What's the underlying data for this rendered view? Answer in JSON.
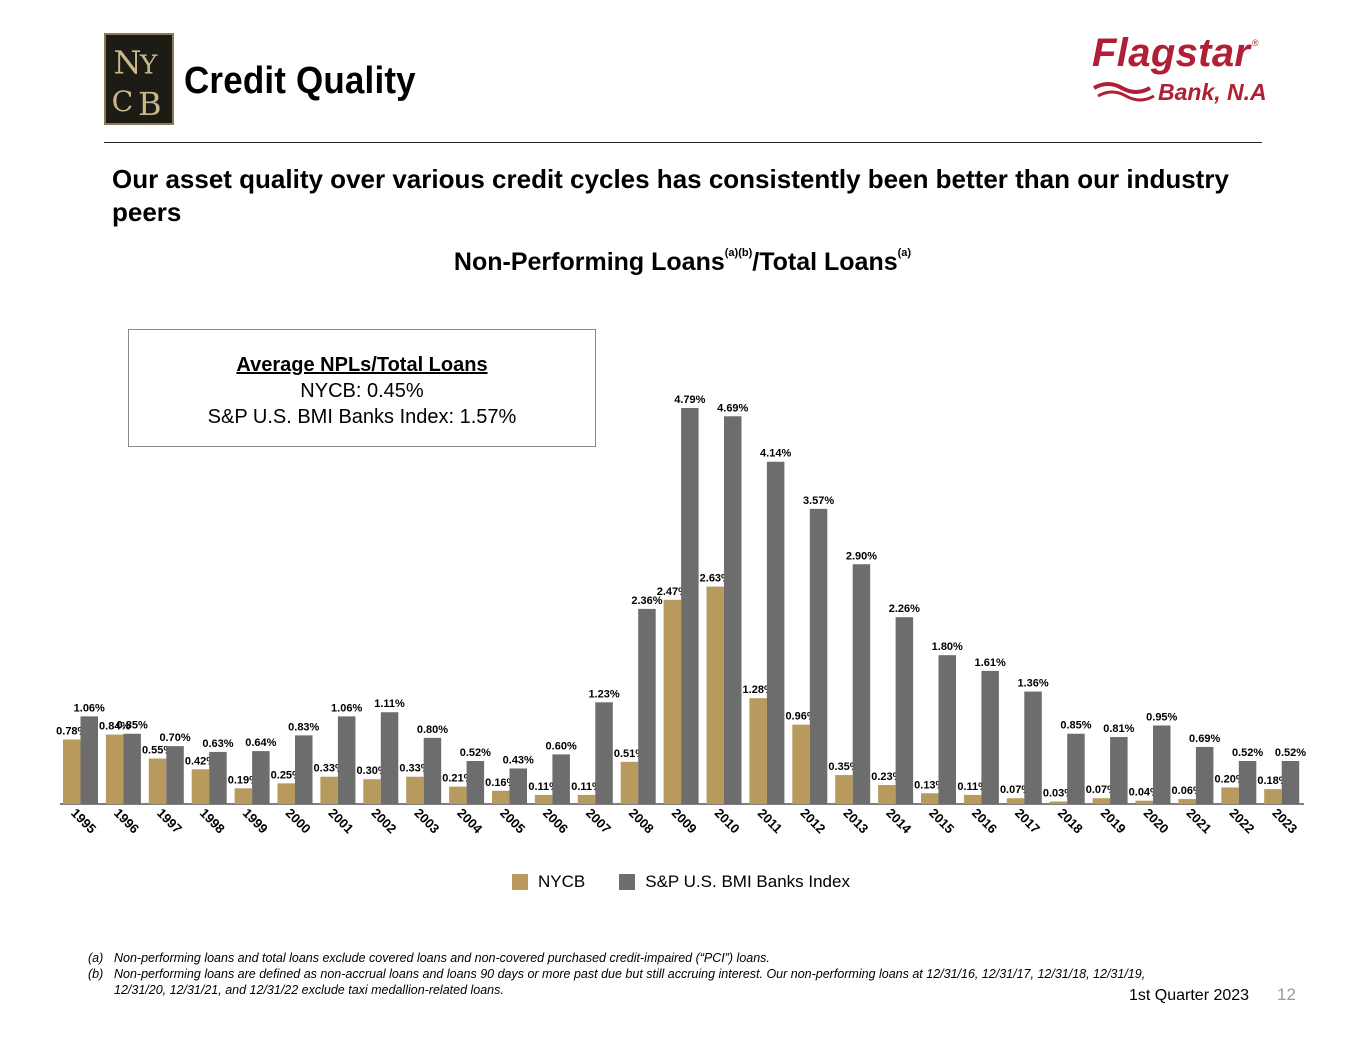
{
  "header": {
    "title": "Credit Quality",
    "brand_left": "NYCB",
    "brand_right_name": "Flagstar",
    "brand_right_sub": "Bank, N.A."
  },
  "headline": "Our asset quality over various credit cycles has consistently been better than our industry peers",
  "chart_title": {
    "main1": "Non-Performing Loans",
    "sup1": "(a)(b)",
    "main2": "/Total Loans",
    "sup2": "(a)"
  },
  "avg_box": {
    "title": "Average NPLs/Total Loans",
    "line1": "NYCB: 0.45%",
    "line2": "S&P U.S. BMI Banks Index: 1.57%"
  },
  "colors": {
    "nycb": "#b89a5f",
    "index": "#6d6d6d",
    "brand_red": "#b01f35"
  },
  "chart_data": {
    "type": "bar",
    "categories": [
      "1995",
      "1996",
      "1997",
      "1998",
      "1999",
      "2000",
      "2001",
      "2002",
      "2003",
      "2004",
      "2005",
      "2006",
      "2007",
      "2008",
      "2009",
      "2010",
      "2011",
      "2012",
      "2013",
      "2014",
      "2015",
      "2016",
      "2017",
      "2018",
      "2019",
      "2020",
      "2021",
      "2022",
      "2023"
    ],
    "series": [
      {
        "name": "NYCB",
        "values": [
          0.78,
          0.84,
          0.55,
          0.42,
          0.19,
          0.25,
          0.33,
          0.3,
          0.33,
          0.21,
          0.16,
          0.11,
          0.11,
          0.51,
          2.47,
          2.63,
          1.28,
          0.96,
          0.35,
          0.23,
          0.13,
          0.11,
          0.07,
          0.03,
          0.07,
          0.04,
          0.06,
          0.2,
          0.18
        ]
      },
      {
        "name": "S&P U.S. BMI Banks Index",
        "values": [
          1.06,
          0.85,
          0.7,
          0.63,
          0.64,
          0.83,
          1.06,
          1.11,
          0.8,
          0.52,
          0.43,
          0.6,
          1.23,
          2.36,
          4.79,
          4.69,
          4.14,
          3.57,
          2.9,
          2.26,
          1.8,
          1.61,
          1.36,
          0.85,
          0.81,
          0.95,
          0.69,
          0.52,
          0.52
        ]
      }
    ],
    "value_suffix": "%",
    "ylim": [
      0,
      4.79
    ],
    "grid": false,
    "legend_position": "bottom-center"
  },
  "legend": {
    "nycb": "NYCB",
    "index": "S&P U.S. BMI Banks Index"
  },
  "footnotes": [
    {
      "tag": "(a)",
      "text": "Non-performing loans and total loans exclude covered loans and non-covered purchased credit-impaired (“PCI”) loans."
    },
    {
      "tag": "(b)",
      "text": "Non-performing loans are defined as non-accrual loans and loans 90 days or more past due but still accruing interest. Our non-performing loans at 12/31/16, 12/31/17, 12/31/18, 12/31/19, 12/31/20, 12/31/21, and 12/31/22 exclude taxi medallion-related loans."
    }
  ],
  "footer": {
    "period": "1st Quarter 2023",
    "page": "12"
  }
}
